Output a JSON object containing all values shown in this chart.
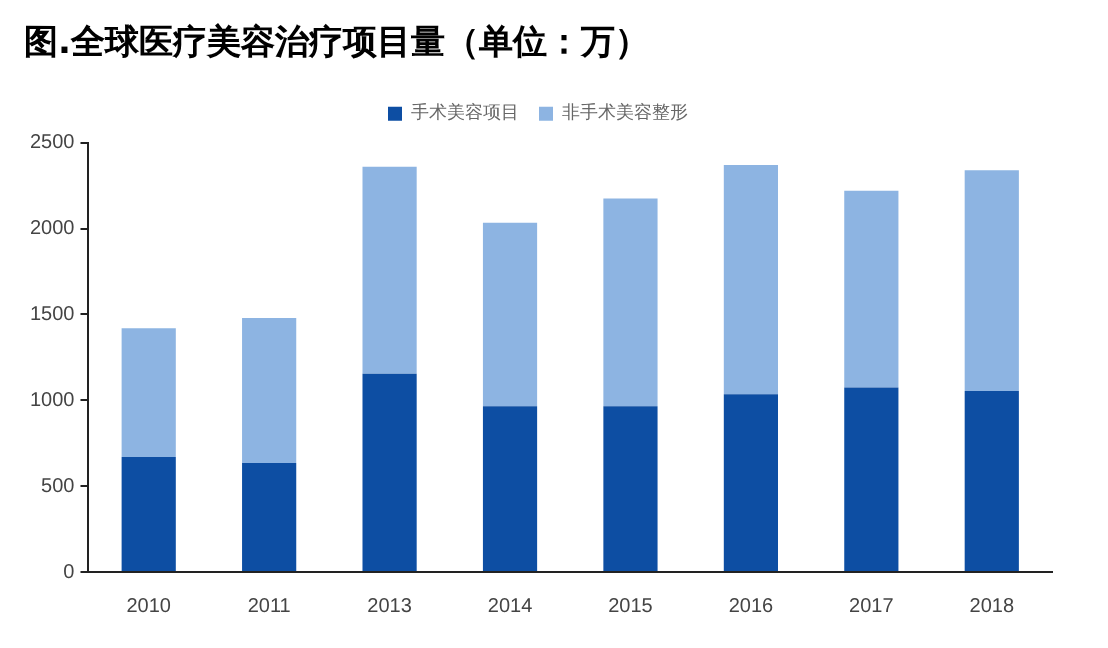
{
  "chart_data": {
    "type": "bar",
    "title": "图.全球医疗美容治疗项目量（单位：万）",
    "categories": [
      "2010",
      "2011",
      "2013",
      "2014",
      "2015",
      "2016",
      "2017",
      "2018"
    ],
    "series": [
      {
        "name": "手术美容项目",
        "color": "#0d4ea3",
        "values": [
          670,
          635,
          1155,
          965,
          965,
          1035,
          1075,
          1055
        ]
      },
      {
        "name": "非手术美容整形",
        "color": "#8db4e2",
        "values": [
          750,
          845,
          1205,
          1070,
          1210,
          1335,
          1145,
          1285
        ]
      }
    ],
    "stacked": true,
    "ylim": [
      0,
      2500
    ],
    "yticks": [
      0,
      500,
      1000,
      1500,
      2000,
      2500
    ],
    "grid": false,
    "legend": "top"
  }
}
